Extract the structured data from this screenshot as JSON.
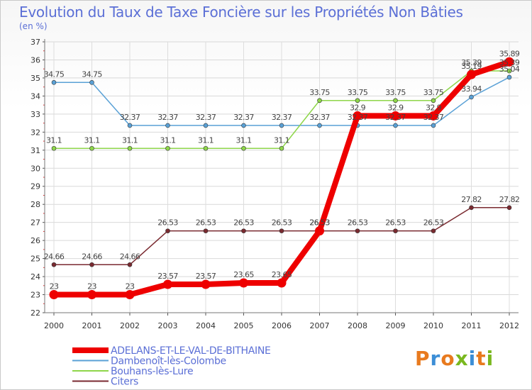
{
  "header": {
    "title": "Evolution du Taux de Taxe Foncière sur les Propriétés Non Bâties",
    "unit": "(en %)"
  },
  "logo": {
    "text": "Proxiti",
    "colors": [
      "#e87a1e",
      "#3c8ed6",
      "#e87a1e",
      "#7ab81f",
      "#3c8ed6",
      "#e87a1e",
      "#7ab81f"
    ]
  },
  "chart_data": {
    "type": "line",
    "title": "Evolution du Taux de Taxe Foncière sur les Propriétés Non Bâties",
    "ylabel": "(en %)",
    "xlabel": "",
    "categories": [
      "2000",
      "2001",
      "2002",
      "2003",
      "2004",
      "2005",
      "2006",
      "2007",
      "2008",
      "2009",
      "2010",
      "2011",
      "2012"
    ],
    "ylim": [
      22,
      37
    ],
    "yticks": [
      22,
      23,
      24,
      25,
      26,
      27,
      28,
      29,
      30,
      31,
      32,
      33,
      34,
      35,
      36,
      37
    ],
    "grid": true,
    "legend_position": "bottom-left",
    "series": [
      {
        "name": "ADELANS-ET-LE-VAL-DE-BITHAINE",
        "color": "#ee0000",
        "width": 8,
        "values": [
          23,
          23,
          23,
          23.57,
          23.57,
          23.65,
          23.65,
          26.53,
          32.9,
          32.9,
          32.9,
          35.19,
          35.89
        ]
      },
      {
        "name": "Dambenoît-lès-Colombe",
        "color": "#5aa1d6",
        "width": 1.5,
        "values": [
          34.75,
          34.75,
          32.37,
          32.37,
          32.37,
          32.37,
          32.37,
          32.37,
          32.37,
          32.37,
          32.37,
          33.94,
          35.04
        ]
      },
      {
        "name": "Bouhans-lès-Lure",
        "color": "#8ed64a",
        "width": 1.5,
        "values": [
          31.1,
          31.1,
          31.1,
          31.1,
          31.1,
          31.1,
          31.1,
          33.75,
          33.75,
          33.75,
          33.75,
          35.39,
          35.39
        ]
      },
      {
        "name": "Citers",
        "color": "#7a2a30",
        "width": 1.5,
        "values": [
          24.66,
          24.66,
          24.66,
          26.53,
          26.53,
          26.53,
          26.53,
          26.53,
          26.53,
          26.53,
          26.53,
          27.82,
          27.82
        ]
      }
    ],
    "labels": {
      "ADELANS-ET-LE-VAL-DE-BITHAINE": [
        "23",
        "23",
        "23",
        "23.57",
        "23.57",
        "23.65",
        "23.65",
        "26.53",
        "32.9",
        "32.9",
        "32.9",
        "35.19",
        "35.89"
      ],
      "Dambenoît-lès-Colombe": [
        "34.75",
        "34.75",
        "32.37",
        "32.37",
        "32.37",
        "32.37",
        "32.37",
        "32.37",
        "32.37",
        "32.37",
        "32.37",
        "33.94",
        "35.04"
      ],
      "Bouhans-lès-Lure": [
        "31.1",
        "31.1",
        "31.1",
        "31.1",
        "31.1",
        "31.1",
        "31.1",
        "33.75",
        "33.75",
        "33.75",
        "33.75",
        "35.39",
        "35.39"
      ],
      "Citers": [
        "24.66",
        "24.66",
        "24.66",
        "26.53",
        "26.53",
        "26.53",
        "26.53",
        "26.53",
        "26.53",
        "26.53",
        "26.53",
        "27.82",
        "27.82"
      ]
    }
  }
}
